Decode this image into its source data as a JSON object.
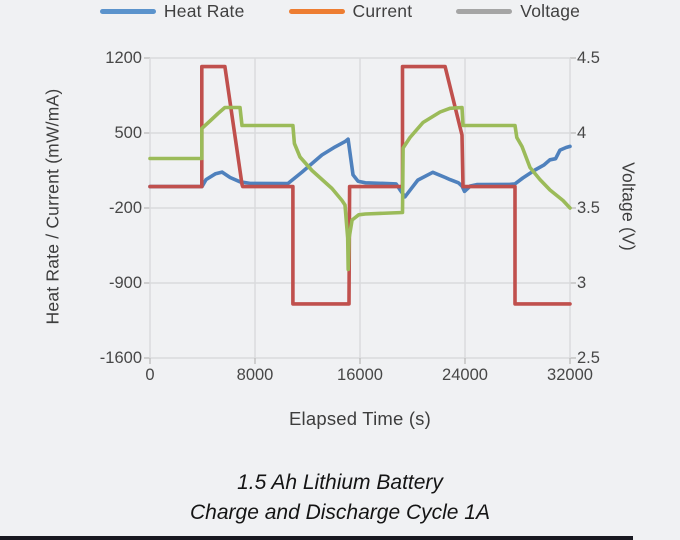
{
  "page": {
    "background": "#f0f1f3"
  },
  "legend": {
    "items": [
      {
        "label": "Heat Rate",
        "color": "#5b93cc"
      },
      {
        "label": "Current",
        "color": "#ed7d31"
      },
      {
        "label": "Voltage",
        "color": "#a5a5a5"
      }
    ]
  },
  "caption": {
    "line1": "1.5 Ah Lithium Battery",
    "line2": "Charge and Discharge Cycle 1A"
  },
  "chart_data": {
    "type": "line",
    "title": "1.5 Ah Lithium Battery Charge and Discharge Cycle 1A",
    "xlabel": "Elapsed Time (s)",
    "ylabel_left": "Heat Rate / Current (mW/mA)",
    "ylabel_right": "Voltage (V)",
    "x_range": [
      0,
      32000
    ],
    "y_left_range": [
      -1600,
      1200
    ],
    "y_right_range": [
      2.5,
      4.5
    ],
    "x_ticks": [
      0,
      8000,
      16000,
      24000,
      32000
    ],
    "y_left_ticks": [
      1200,
      500,
      -200,
      -900,
      -1600
    ],
    "y_right_ticks": [
      4.5,
      4,
      3.5,
      3,
      2.5
    ],
    "grid": true,
    "legend_position": "top",
    "colors": {
      "grid": "#d9dadc",
      "tick": "#bfbfbf"
    },
    "series": [
      {
        "name": "Heat Rate",
        "axis": "left",
        "color": "#4f81bd",
        "units": "mW",
        "points": [
          [
            0,
            0
          ],
          [
            3960,
            0
          ],
          [
            4270,
            65
          ],
          [
            5000,
            120
          ],
          [
            5490,
            135
          ],
          [
            6100,
            85
          ],
          [
            6860,
            45
          ],
          [
            7620,
            30
          ],
          [
            10500,
            28
          ],
          [
            11580,
            135
          ],
          [
            12340,
            215
          ],
          [
            13100,
            295
          ],
          [
            14100,
            370
          ],
          [
            14860,
            420
          ],
          [
            15090,
            443
          ],
          [
            15470,
            110
          ],
          [
            15850,
            50
          ],
          [
            16400,
            35
          ],
          [
            18750,
            25
          ],
          [
            19050,
            -30
          ],
          [
            19430,
            -95
          ],
          [
            19900,
            -20
          ],
          [
            20400,
            60
          ],
          [
            21550,
            133
          ],
          [
            22500,
            85
          ],
          [
            22860,
            65
          ],
          [
            23500,
            35
          ],
          [
            23770,
            5
          ],
          [
            23960,
            -45
          ],
          [
            24400,
            5
          ],
          [
            24900,
            18
          ],
          [
            27400,
            20
          ],
          [
            27800,
            25
          ],
          [
            28400,
            80
          ],
          [
            29330,
            155
          ],
          [
            30000,
            200
          ],
          [
            30480,
            250
          ],
          [
            30900,
            260
          ],
          [
            31240,
            340
          ],
          [
            31700,
            365
          ],
          [
            32000,
            375
          ]
        ]
      },
      {
        "name": "Current",
        "axis": "left",
        "color": "#c0504d",
        "units": "mA",
        "points": [
          [
            0,
            0
          ],
          [
            3950,
            0
          ],
          [
            3950,
            1120
          ],
          [
            5710,
            1120
          ],
          [
            7010,
            20
          ],
          [
            7060,
            0
          ],
          [
            10890,
            0
          ],
          [
            10890,
            -1095
          ],
          [
            15160,
            -1095
          ],
          [
            15210,
            0
          ],
          [
            19240,
            0
          ],
          [
            19240,
            1120
          ],
          [
            22480,
            1120
          ],
          [
            23770,
            480
          ],
          [
            23850,
            0
          ],
          [
            27810,
            0
          ],
          [
            27810,
            -1095
          ],
          [
            32000,
            -1095
          ]
        ]
      },
      {
        "name": "Voltage",
        "axis": "right",
        "color": "#9bbb59",
        "units": "V",
        "points": [
          [
            0,
            3.83
          ],
          [
            3950,
            3.83
          ],
          [
            3950,
            4.03
          ],
          [
            4570,
            4.08
          ],
          [
            5180,
            4.13
          ],
          [
            5710,
            4.17
          ],
          [
            6860,
            4.17
          ],
          [
            7010,
            4.05
          ],
          [
            10890,
            4.05
          ],
          [
            11000,
            3.93
          ],
          [
            11430,
            3.84
          ],
          [
            12340,
            3.75
          ],
          [
            13870,
            3.63
          ],
          [
            14630,
            3.55
          ],
          [
            14860,
            3.52
          ],
          [
            15060,
            3.3
          ],
          [
            15100,
            3.09
          ],
          [
            15170,
            3.3
          ],
          [
            15400,
            3.42
          ],
          [
            15900,
            3.455
          ],
          [
            16400,
            3.46
          ],
          [
            19240,
            3.47
          ],
          [
            19280,
            3.9
          ],
          [
            19810,
            3.97
          ],
          [
            20800,
            4.07
          ],
          [
            22100,
            4.14
          ],
          [
            22860,
            4.165
          ],
          [
            23770,
            4.17
          ],
          [
            23850,
            4.05
          ],
          [
            27810,
            4.05
          ],
          [
            27950,
            3.97
          ],
          [
            28340,
            3.91
          ],
          [
            28950,
            3.77
          ],
          [
            29710,
            3.69
          ],
          [
            30480,
            3.62
          ],
          [
            31470,
            3.55
          ],
          [
            32000,
            3.5
          ]
        ]
      }
    ]
  }
}
